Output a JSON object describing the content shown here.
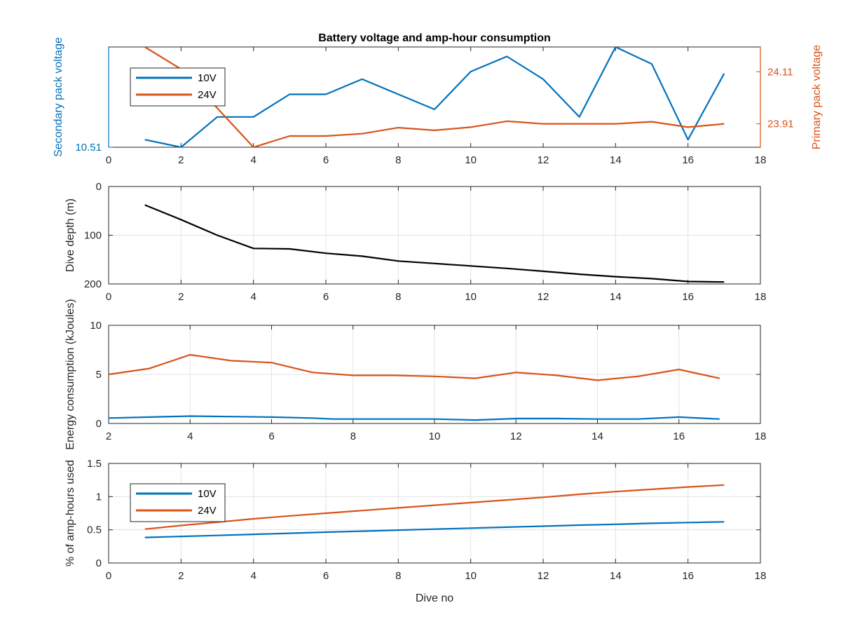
{
  "colors": {
    "s10": "#0072BD",
    "s24": "#D95319",
    "depth": "#000000"
  },
  "chart_data": [
    {
      "type": "line",
      "title": "Battery voltage and amp-hour consumption",
      "xlabel": "",
      "xlim": [
        0,
        18
      ],
      "xticks": [
        0,
        2,
        4,
        6,
        8,
        10,
        12,
        14,
        16,
        18
      ],
      "ylabel_left": "Secondary pack voltage",
      "ylabel_right": "Primary pack voltage",
      "ylim_left": [
        10.51,
        10.5365
      ],
      "ylim_right": [
        23.82,
        24.205
      ],
      "yticks_left": [
        10.51
      ],
      "yticks_right": [
        23.91,
        24.11
      ],
      "grid": false,
      "legend": {
        "placement": "top-left",
        "entries": [
          "10V",
          "24V"
        ]
      },
      "series": [
        {
          "name": "10V",
          "axis": "left",
          "x": [
            1,
            2,
            3,
            4,
            5,
            6,
            7,
            8,
            9,
            10,
            11,
            12,
            13,
            14,
            15,
            16,
            17
          ],
          "y": [
            10.512,
            10.51,
            10.518,
            10.518,
            10.524,
            10.524,
            10.528,
            10.524,
            10.52,
            10.53,
            10.534,
            10.528,
            10.518,
            10.5365,
            10.532,
            10.512,
            10.5295
          ]
        },
        {
          "name": "24V",
          "axis": "right",
          "x": [
            1,
            2,
            3,
            4,
            5,
            6,
            7,
            8,
            9,
            10,
            11,
            12,
            13,
            14,
            15,
            16,
            17
          ],
          "y": [
            24.205,
            24.12,
            23.97,
            23.82,
            23.863,
            23.863,
            23.872,
            23.895,
            23.885,
            23.897,
            23.92,
            23.91,
            23.91,
            23.91,
            23.918,
            23.897,
            23.91
          ]
        }
      ]
    },
    {
      "type": "line",
      "xlabel": "",
      "ylabel": "Dive depth (m)",
      "xlim": [
        0,
        18
      ],
      "xticks": [
        0,
        2,
        4,
        6,
        8,
        10,
        12,
        14,
        16,
        18
      ],
      "ylim": [
        0,
        200
      ],
      "yreverse": true,
      "yticks": [
        0,
        100,
        200
      ],
      "grid": true,
      "series": [
        {
          "x": [
            1,
            2,
            3,
            4,
            5,
            6,
            7,
            8,
            9,
            10,
            11,
            12,
            13,
            14,
            15,
            16,
            17
          ],
          "y": [
            38,
            68,
            100,
            127,
            128,
            137,
            143,
            153,
            158,
            163,
            168,
            174,
            180,
            185,
            189,
            195,
            196
          ]
        }
      ]
    },
    {
      "type": "line",
      "xlabel": "",
      "ylabel": "Energy consumption (kJoules)",
      "xlim": [
        2,
        18
      ],
      "xticks": [
        2,
        4,
        6,
        8,
        10,
        12,
        14,
        16,
        18
      ],
      "ylim": [
        0,
        10
      ],
      "yticks": [
        0,
        5,
        10
      ],
      "grid": true,
      "series": [
        {
          "name": "10V",
          "x": [
            2,
            3,
            4,
            5,
            6,
            7,
            7.5,
            8,
            9,
            10,
            11,
            12,
            13,
            14,
            15,
            16,
            17
          ],
          "y": [
            0.55,
            0.65,
            0.75,
            0.7,
            0.65,
            0.55,
            0.45,
            0.45,
            0.45,
            0.45,
            0.35,
            0.5,
            0.5,
            0.45,
            0.45,
            0.65,
            0.45
          ]
        },
        {
          "name": "24V",
          "x": [
            2,
            3,
            4,
            5,
            6,
            7,
            8,
            9,
            10,
            11,
            12,
            13,
            14,
            15,
            16,
            17
          ],
          "y": [
            5.0,
            5.6,
            7.0,
            6.4,
            6.2,
            5.2,
            4.9,
            4.9,
            4.8,
            4.6,
            5.2,
            4.9,
            4.4,
            4.8,
            5.5,
            4.6
          ]
        }
      ]
    },
    {
      "type": "line",
      "xlabel": "Dive no",
      "ylabel": "% of amp-hours used",
      "xlim": [
        0,
        18
      ],
      "xticks": [
        0,
        2,
        4,
        6,
        8,
        10,
        12,
        14,
        16,
        18
      ],
      "ylim": [
        0,
        1.5
      ],
      "yticks": [
        0,
        0.5,
        1,
        1.5
      ],
      "grid": true,
      "legend": {
        "placement": "top-left",
        "entries": [
          "10V",
          "24V"
        ]
      },
      "series": [
        {
          "name": "10V",
          "x": [
            1,
            2,
            3,
            4,
            5,
            6,
            7,
            8,
            9,
            10,
            11,
            12,
            13,
            14,
            15,
            16,
            17
          ],
          "y": [
            0.385,
            0.4,
            0.415,
            0.432,
            0.448,
            0.465,
            0.48,
            0.495,
            0.51,
            0.525,
            0.54,
            0.555,
            0.57,
            0.583,
            0.598,
            0.61,
            0.62
          ]
        },
        {
          "name": "24V",
          "x": [
            1,
            2,
            3,
            4,
            5,
            6,
            7,
            8,
            9,
            10,
            11,
            12,
            13,
            14,
            15,
            16,
            17
          ],
          "y": [
            0.51,
            0.565,
            0.615,
            0.665,
            0.71,
            0.75,
            0.79,
            0.83,
            0.87,
            0.91,
            0.95,
            0.99,
            1.035,
            1.075,
            1.11,
            1.145,
            1.175
          ]
        }
      ]
    }
  ]
}
